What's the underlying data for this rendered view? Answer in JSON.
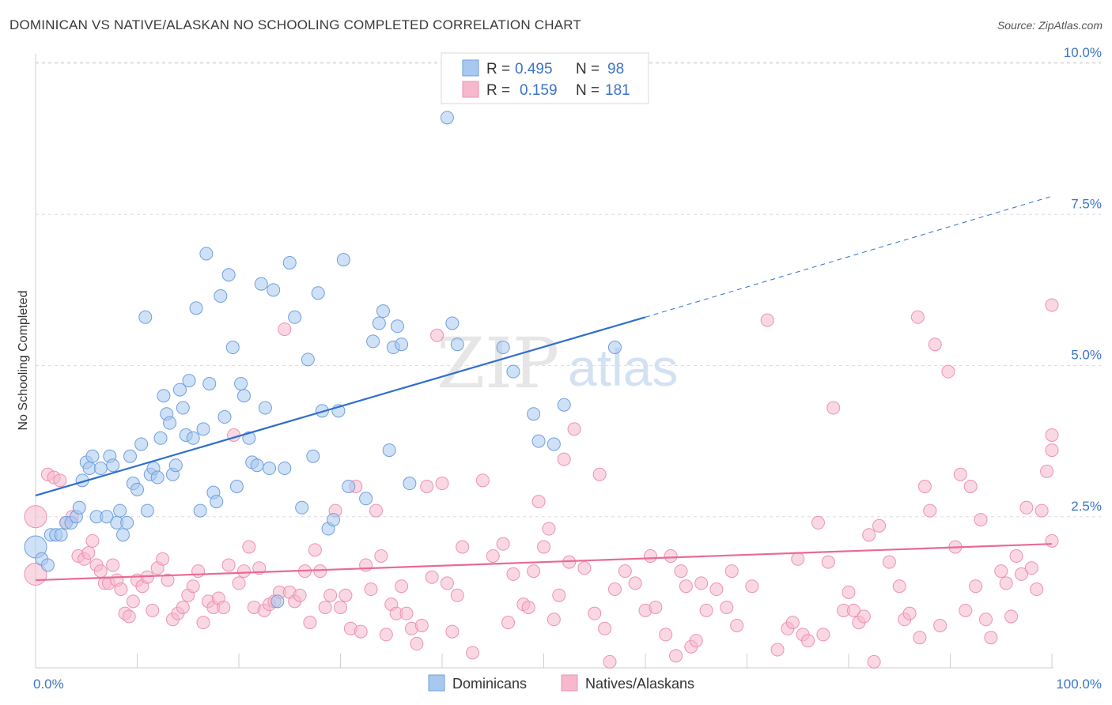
{
  "title": "DOMINICAN VS NATIVE/ALASKAN NO SCHOOLING COMPLETED CORRELATION CHART",
  "source": "Source: ZipAtlas.com",
  "watermark": {
    "zip": "ZIP",
    "atlas": "atlas"
  },
  "colors": {
    "blue_fill": "#a8c8f0",
    "blue_stroke": "#6f9fdc",
    "blue_line": "#2f6fcf",
    "pink_fill": "#f6b8cc",
    "pink_stroke": "#ec92b0",
    "pink_line": "#e96a97",
    "grid": "#dedede",
    "axis_text": "#3b74c9"
  },
  "legend": {
    "rows": [
      {
        "r_label": "R =",
        "r_value": "0.495",
        "n_label": "N =",
        "n_value": "98",
        "series": "blue"
      },
      {
        "r_label": "R =",
        "r_value": "0.159",
        "n_label": "N =",
        "n_value": "181",
        "series": "pink"
      }
    ]
  },
  "chart_data": {
    "type": "scatter",
    "title": "DOMINICAN VS NATIVE/ALASKAN NO SCHOOLING COMPLETED CORRELATION CHART",
    "xlabel": "",
    "ylabel": "No Schooling Completed",
    "xlim": [
      0,
      100
    ],
    "ylim": [
      0,
      10.5
    ],
    "x_tick_labels": [
      "0.0%",
      "100.0%"
    ],
    "y_ticks": [
      2.5,
      5.0,
      7.5,
      10.0
    ],
    "y_tick_labels": [
      "2.5%",
      "5.0%",
      "7.5%",
      "10.0%"
    ],
    "grid": true,
    "legend_position": "top-center",
    "bottom_legend": [
      "Dominicans",
      "Natives/Alaskans"
    ],
    "series": [
      {
        "name": "Dominicans",
        "color": "#a8c8f0",
        "trend": {
          "x0": 0,
          "y0": 2.85,
          "x1": 60,
          "y1": 5.8,
          "dashed_to_x": 100,
          "dashed_to_y": 7.8
        },
        "points": [
          [
            0,
            2.0
          ],
          [
            0.6,
            1.8
          ],
          [
            1.2,
            1.7
          ],
          [
            1.5,
            2.2
          ],
          [
            2.0,
            2.2
          ],
          [
            2.5,
            2.2
          ],
          [
            3,
            2.4
          ],
          [
            3.5,
            2.4
          ],
          [
            4,
            2.5
          ],
          [
            4.3,
            2.65
          ],
          [
            4.6,
            3.1
          ],
          [
            5,
            3.4
          ],
          [
            5.3,
            3.3
          ],
          [
            5.6,
            3.5
          ],
          [
            6,
            2.5
          ],
          [
            6.4,
            3.3
          ],
          [
            7,
            2.5
          ],
          [
            7.3,
            3.5
          ],
          [
            7.6,
            3.35
          ],
          [
            8,
            2.4
          ],
          [
            8.3,
            2.6
          ],
          [
            8.6,
            2.2
          ],
          [
            9,
            2.4
          ],
          [
            9.3,
            3.5
          ],
          [
            9.6,
            3.05
          ],
          [
            10,
            2.95
          ],
          [
            10.4,
            3.7
          ],
          [
            10.8,
            5.8
          ],
          [
            11,
            2.6
          ],
          [
            11.3,
            3.2
          ],
          [
            11.6,
            3.3
          ],
          [
            12,
            3.15
          ],
          [
            12.3,
            3.8
          ],
          [
            12.6,
            4.5
          ],
          [
            12.9,
            4.2
          ],
          [
            13.2,
            4.05
          ],
          [
            13.5,
            3.2
          ],
          [
            13.8,
            3.35
          ],
          [
            14.2,
            4.6
          ],
          [
            14.5,
            4.3
          ],
          [
            14.8,
            3.85
          ],
          [
            15.1,
            4.75
          ],
          [
            15.5,
            3.8
          ],
          [
            15.8,
            5.95
          ],
          [
            16.2,
            2.6
          ],
          [
            16.5,
            3.95
          ],
          [
            16.8,
            6.85
          ],
          [
            17.1,
            4.7
          ],
          [
            17.5,
            2.9
          ],
          [
            17.8,
            2.75
          ],
          [
            18.2,
            6.15
          ],
          [
            18.6,
            4.15
          ],
          [
            19,
            6.5
          ],
          [
            19.4,
            5.3
          ],
          [
            19.8,
            3.0
          ],
          [
            20.2,
            4.7
          ],
          [
            20.5,
            4.5
          ],
          [
            21,
            3.8
          ],
          [
            21.3,
            3.4
          ],
          [
            21.8,
            3.35
          ],
          [
            22.2,
            6.35
          ],
          [
            22.6,
            4.3
          ],
          [
            23,
            3.3
          ],
          [
            23.4,
            6.25
          ],
          [
            23.8,
            1.1
          ],
          [
            24.5,
            3.3
          ],
          [
            25,
            6.7
          ],
          [
            25.5,
            5.8
          ],
          [
            26.2,
            2.65
          ],
          [
            26.8,
            5.1
          ],
          [
            27.3,
            3.5
          ],
          [
            27.8,
            6.2
          ],
          [
            28.2,
            4.25
          ],
          [
            28.8,
            2.3
          ],
          [
            29.3,
            2.45
          ],
          [
            29.8,
            4.25
          ],
          [
            30.3,
            6.75
          ],
          [
            30.8,
            3.0
          ],
          [
            32.5,
            2.8
          ],
          [
            33.2,
            5.4
          ],
          [
            33.8,
            5.7
          ],
          [
            34.2,
            5.9
          ],
          [
            34.8,
            3.6
          ],
          [
            35.2,
            5.3
          ],
          [
            35.6,
            5.65
          ],
          [
            36,
            5.35
          ],
          [
            36.8,
            3.05
          ],
          [
            40.5,
            9.1
          ],
          [
            41,
            5.7
          ],
          [
            41.5,
            5.35
          ],
          [
            46,
            5.3
          ],
          [
            47,
            4.9
          ],
          [
            49,
            4.2
          ],
          [
            49.5,
            3.75
          ],
          [
            51,
            3.7
          ],
          [
            52,
            4.35
          ],
          [
            57,
            5.3
          ]
        ]
      },
      {
        "name": "Natives/Alaskans",
        "color": "#f6b8cc",
        "trend": {
          "x0": 0,
          "y0": 1.45,
          "x1": 100,
          "y1": 2.05
        },
        "points": [
          [
            0,
            1.55
          ],
          [
            0,
            2.5
          ],
          [
            1.2,
            3.2
          ],
          [
            1.8,
            3.15
          ],
          [
            2.4,
            3.1
          ],
          [
            3,
            2.4
          ],
          [
            3.6,
            2.5
          ],
          [
            4.2,
            1.85
          ],
          [
            4.8,
            1.8
          ],
          [
            5.2,
            1.9
          ],
          [
            5.6,
            2.1
          ],
          [
            6,
            1.7
          ],
          [
            6.4,
            1.6
          ],
          [
            6.8,
            1.4
          ],
          [
            7.2,
            1.4
          ],
          [
            7.6,
            1.7
          ],
          [
            8,
            1.45
          ],
          [
            8.4,
            1.3
          ],
          [
            8.8,
            0.9
          ],
          [
            9.2,
            0.85
          ],
          [
            9.6,
            1.1
          ],
          [
            10,
            1.45
          ],
          [
            10.5,
            1.35
          ],
          [
            11,
            1.5
          ],
          [
            11.5,
            0.95
          ],
          [
            12,
            1.65
          ],
          [
            12.5,
            1.8
          ],
          [
            13,
            1.45
          ],
          [
            13.5,
            0.8
          ],
          [
            14,
            0.9
          ],
          [
            14.5,
            1.0
          ],
          [
            15,
            1.2
          ],
          [
            15.5,
            1.35
          ],
          [
            16,
            1.6
          ],
          [
            16.5,
            0.75
          ],
          [
            17,
            1.1
          ],
          [
            17.5,
            1.0
          ],
          [
            18,
            1.15
          ],
          [
            18.5,
            1.0
          ],
          [
            19,
            1.7
          ],
          [
            19.5,
            3.85
          ],
          [
            20,
            1.4
          ],
          [
            20.5,
            1.6
          ],
          [
            21,
            2.0
          ],
          [
            21.5,
            1.0
          ],
          [
            22,
            1.65
          ],
          [
            22.5,
            0.95
          ],
          [
            23,
            1.05
          ],
          [
            23.5,
            1.1
          ],
          [
            24,
            1.25
          ],
          [
            24.5,
            5.6
          ],
          [
            25,
            1.25
          ],
          [
            25.5,
            1.1
          ],
          [
            26,
            1.2
          ],
          [
            26.5,
            1.6
          ],
          [
            27,
            0.75
          ],
          [
            27.5,
            1.95
          ],
          [
            28,
            1.6
          ],
          [
            28.5,
            1.0
          ],
          [
            29,
            1.2
          ],
          [
            29.5,
            2.6
          ],
          [
            30,
            1.0
          ],
          [
            30.5,
            1.2
          ],
          [
            31,
            0.65
          ],
          [
            31.5,
            3.0
          ],
          [
            32,
            0.6
          ],
          [
            32.5,
            1.7
          ],
          [
            33,
            1.3
          ],
          [
            33.5,
            2.6
          ],
          [
            34,
            1.85
          ],
          [
            34.5,
            0.55
          ],
          [
            35,
            1.05
          ],
          [
            35.5,
            0.9
          ],
          [
            36,
            1.35
          ],
          [
            36.5,
            0.9
          ],
          [
            37,
            0.65
          ],
          [
            37.5,
            0.4
          ],
          [
            38,
            0.7
          ],
          [
            38.5,
            3.0
          ],
          [
            39,
            1.5
          ],
          [
            39.5,
            5.5
          ],
          [
            40,
            3.05
          ],
          [
            40.5,
            1.4
          ],
          [
            41,
            0.6
          ],
          [
            41.5,
            1.2
          ],
          [
            42,
            2.0
          ],
          [
            43,
            0.25
          ],
          [
            44,
            3.1
          ],
          [
            45,
            1.85
          ],
          [
            46,
            2.05
          ],
          [
            46.5,
            0.75
          ],
          [
            47,
            1.55
          ],
          [
            48,
            1.05
          ],
          [
            48.5,
            1.0
          ],
          [
            49,
            1.6
          ],
          [
            49.5,
            2.75
          ],
          [
            50,
            2.0
          ],
          [
            50.5,
            2.3
          ],
          [
            51,
            0.8
          ],
          [
            51.5,
            1.2
          ],
          [
            52,
            3.45
          ],
          [
            52.5,
            1.75
          ],
          [
            53,
            3.95
          ],
          [
            54,
            1.65
          ],
          [
            55,
            0.9
          ],
          [
            55.5,
            3.2
          ],
          [
            56,
            0.65
          ],
          [
            56.5,
            0.1
          ],
          [
            57,
            1.3
          ],
          [
            58,
            1.6
          ],
          [
            59,
            1.4
          ],
          [
            60,
            0.95
          ],
          [
            60.5,
            1.85
          ],
          [
            61,
            1.0
          ],
          [
            62,
            0.55
          ],
          [
            62.5,
            1.85
          ],
          [
            63,
            0.2
          ],
          [
            63.5,
            1.6
          ],
          [
            64,
            1.35
          ],
          [
            64.5,
            0.35
          ],
          [
            65,
            0.45
          ],
          [
            65.5,
            1.4
          ],
          [
            66,
            0.95
          ],
          [
            67,
            1.3
          ],
          [
            68,
            1.0
          ],
          [
            68.5,
            1.6
          ],
          [
            69,
            0.7
          ],
          [
            70.5,
            1.35
          ],
          [
            72,
            5.75
          ],
          [
            73,
            0.3
          ],
          [
            74,
            0.65
          ],
          [
            74.5,
            0.75
          ],
          [
            75,
            1.8
          ],
          [
            75.5,
            0.55
          ],
          [
            76,
            0.45
          ],
          [
            77,
            2.4
          ],
          [
            77.5,
            0.55
          ],
          [
            78,
            1.75
          ],
          [
            78.5,
            4.3
          ],
          [
            79.5,
            0.95
          ],
          [
            80,
            1.25
          ],
          [
            80.5,
            0.95
          ],
          [
            81,
            0.75
          ],
          [
            81.5,
            0.85
          ],
          [
            82,
            2.2
          ],
          [
            82.5,
            0.1
          ],
          [
            83,
            2.35
          ],
          [
            84,
            1.75
          ],
          [
            85,
            1.35
          ],
          [
            85.5,
            0.8
          ],
          [
            86,
            0.9
          ],
          [
            86.8,
            5.8
          ],
          [
            87,
            0.5
          ],
          [
            87.5,
            3.0
          ],
          [
            88,
            2.6
          ],
          [
            88.5,
            5.35
          ],
          [
            89,
            0.7
          ],
          [
            89.8,
            4.9
          ],
          [
            90.5,
            2.0
          ],
          [
            91,
            3.2
          ],
          [
            91.5,
            0.95
          ],
          [
            92,
            3.0
          ],
          [
            92.5,
            1.35
          ],
          [
            93,
            2.45
          ],
          [
            93.5,
            0.8
          ],
          [
            94,
            0.5
          ],
          [
            95,
            1.6
          ],
          [
            95.5,
            1.4
          ],
          [
            96,
            0.85
          ],
          [
            96.5,
            1.85
          ],
          [
            97,
            1.55
          ],
          [
            97.5,
            2.65
          ],
          [
            98,
            1.65
          ],
          [
            98.5,
            1.3
          ],
          [
            99,
            2.6
          ],
          [
            99.5,
            3.25
          ],
          [
            100,
            2.1
          ],
          [
            100,
            3.85
          ],
          [
            100,
            3.6
          ],
          [
            100,
            6.0
          ]
        ]
      }
    ]
  }
}
